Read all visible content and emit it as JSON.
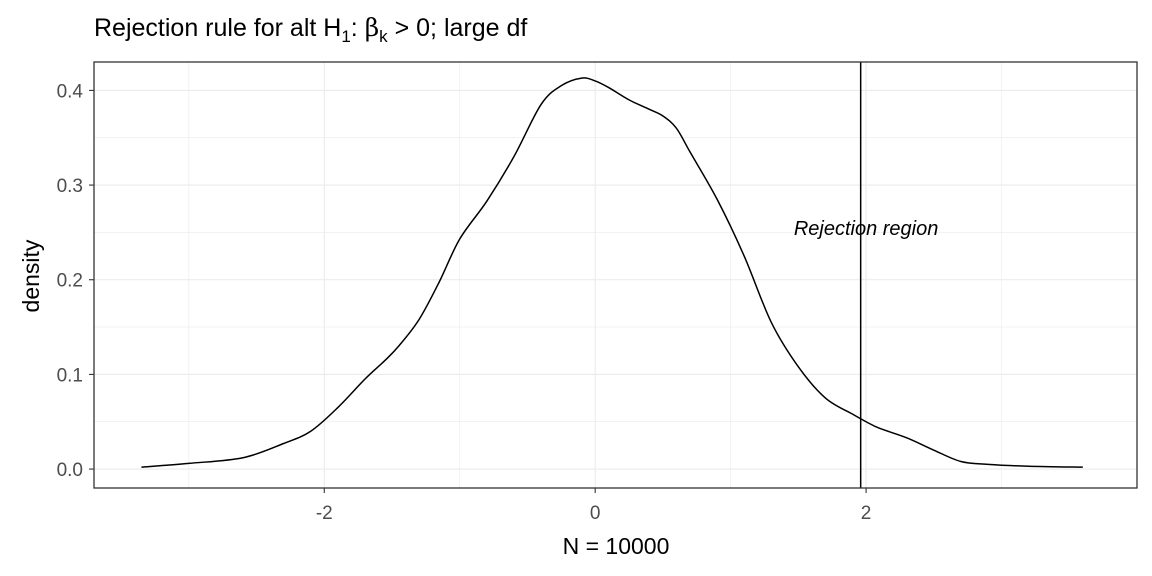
{
  "chart_data": {
    "type": "line",
    "title_prefix": "Rejection rule for alt H",
    "title_sub1": "1",
    "title_colon": ": ",
    "title_beta": "β",
    "title_sub_k": "k",
    "title_rest": " > 0; large df",
    "xlabel": "N = 10000",
    "ylabel": "density",
    "xlim": [
      -3.7,
      4.0
    ],
    "ylim": [
      -0.02,
      0.43
    ],
    "x_ticks": [
      -2,
      0,
      2
    ],
    "x_tick_labels": [
      "-2",
      "0",
      "2"
    ],
    "y_ticks": [
      0.0,
      0.1,
      0.2,
      0.3,
      0.4
    ],
    "y_tick_labels": [
      "0.0",
      "0.1",
      "0.2",
      "0.3",
      "0.4"
    ],
    "grid": true,
    "critical_value": 1.96,
    "annotation": {
      "text": "Rejection region",
      "x": 2.0,
      "y": 0.247
    },
    "series": [
      {
        "color": "#000000",
        "x": [
          -3.35,
          -3.0,
          -2.6,
          -2.3,
          -2.1,
          -1.9,
          -1.7,
          -1.55,
          -1.45,
          -1.3,
          -1.15,
          -1.0,
          -0.8,
          -0.6,
          -0.4,
          -0.25,
          -0.1,
          0.0,
          0.1,
          0.25,
          0.4,
          0.5,
          0.6,
          0.7,
          0.9,
          1.1,
          1.3,
          1.5,
          1.7,
          1.9,
          2.0,
          2.1,
          2.3,
          2.5,
          2.7,
          2.9,
          3.2,
          3.6
        ],
        "values": [
          0.002,
          0.006,
          0.012,
          0.027,
          0.04,
          0.065,
          0.095,
          0.115,
          0.13,
          0.158,
          0.198,
          0.243,
          0.283,
          0.33,
          0.385,
          0.405,
          0.413,
          0.41,
          0.403,
          0.39,
          0.38,
          0.373,
          0.36,
          0.335,
          0.285,
          0.225,
          0.155,
          0.108,
          0.075,
          0.058,
          0.05,
          0.043,
          0.033,
          0.02,
          0.008,
          0.005,
          0.003,
          0.002
        ]
      }
    ]
  }
}
